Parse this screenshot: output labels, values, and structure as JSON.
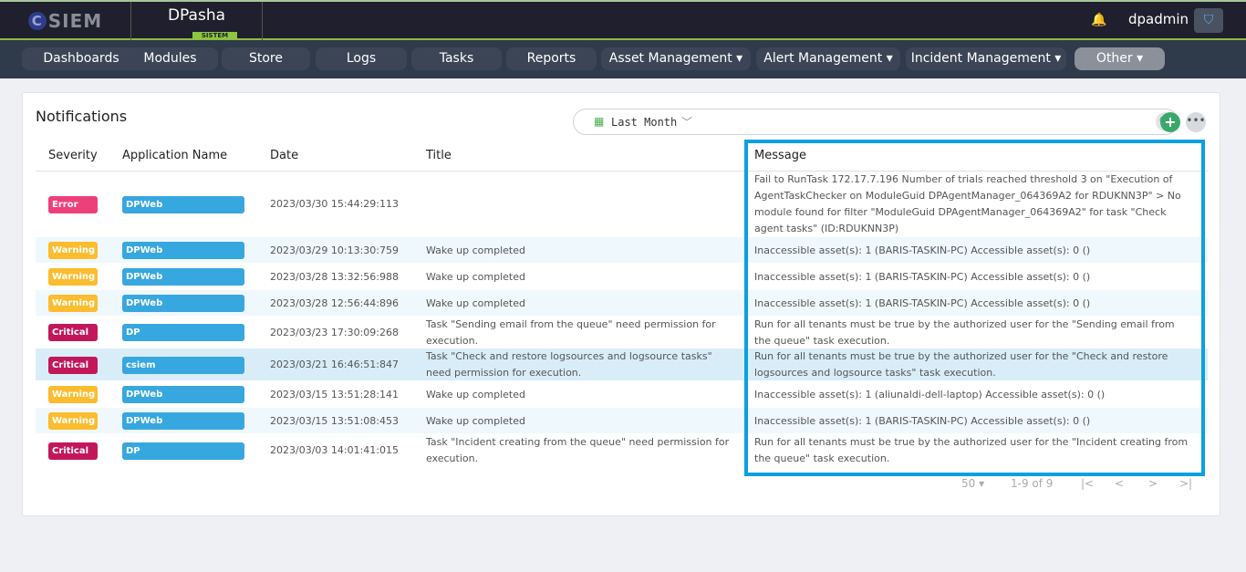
{
  "header": {
    "logo_left": "SIEM",
    "logo_right": "DPasha",
    "logo_right_sub": "SISTEM",
    "username": "dpadmin",
    "bell_icon": "bell-icon",
    "shield_icon": "shield-icon"
  },
  "nav": [
    "Dashboards",
    "Modules",
    "Store",
    "Logs",
    "Tasks",
    "Reports",
    "Asset Management ▾",
    "Alert Management ▾",
    "Incident Management ▾",
    "Other ▾"
  ],
  "notifications": {
    "title": "Notifications",
    "filter": "Last Month",
    "columns": [
      "Severity",
      "Application Name",
      "Date",
      "Title",
      "Message"
    ],
    "rows": [
      {
        "severity": "Error",
        "app": "DPWeb",
        "date": "2023/03/30 15:44:29:113",
        "title": "",
        "message": "Fail to RunTask 172.17.7.196 Number of trials reached threshold 3 on \"Execution of AgentTaskChecker on ModuleGuid DPAgentManager_064369A2 for RDUKNN3P\" > No module found for filter \"ModuleGuid DPAgentManager_064369A2\" for task \"Check agent tasks\" (ID:RDUKNN3P)"
      },
      {
        "severity": "Warning",
        "app": "DPWeb",
        "date": "2023/03/29 10:13:30:759",
        "title": "Wake up completed",
        "message": "Inaccessible asset(s): 1 (BARIS-TASKIN-PC) Accessible asset(s): 0 ()"
      },
      {
        "severity": "Warning",
        "app": "DPWeb",
        "date": "2023/03/28 13:32:56:988",
        "title": "Wake up completed",
        "message": "Inaccessible asset(s): 1 (BARIS-TASKIN-PC) Accessible asset(s): 0 ()"
      },
      {
        "severity": "Warning",
        "app": "DPWeb",
        "date": "2023/03/28 12:56:44:896",
        "title": "Wake up completed",
        "message": "Inaccessible asset(s): 1 (BARIS-TASKIN-PC) Accessible asset(s): 0 ()"
      },
      {
        "severity": "Critical",
        "app": "DP",
        "date": "2023/03/23 17:30:09:268",
        "title": "Task \"Sending email from the queue\" need permission for execution.",
        "message": "Run for all tenants must be true by the authorized user for the \"Sending email from the queue\" task execution."
      },
      {
        "severity": "Critical",
        "app": "csiem",
        "date": "2023/03/21 16:46:51:847",
        "title": "Task \"Check and restore logsources and logsource tasks\" need permission for execution.",
        "message": "Run for all tenants must be true by the authorized user for the \"Check and restore logsources and logsource tasks\" task execution."
      },
      {
        "severity": "Warning",
        "app": "DPWeb",
        "date": "2023/03/15 13:51:28:141",
        "title": "Wake up completed",
        "message": "Inaccessible asset(s): 1 (aliunaldi-dell-laptop) Accessible asset(s): 0 ()"
      },
      {
        "severity": "Warning",
        "app": "DPWeb",
        "date": "2023/03/15 13:51:08:453",
        "title": "Wake up completed",
        "message": "Inaccessible asset(s): 1 (BARIS-TASKIN-PC) Accessible asset(s): 0 ()"
      },
      {
        "severity": "Critical",
        "app": "DP",
        "date": "2023/03/03 14:01:41:015",
        "title": "Task \"Incident creating from the queue\" need permission for execution.",
        "message": "Run for all tenants must be true by the authorized user for the \"Incident creating from the queue\" task execution."
      }
    ],
    "page_size": "50",
    "range": "1-9 of 9"
  },
  "colors": {
    "Error": "#ec407a",
    "Warning": "#fbbc2e",
    "Critical": "#c2185b",
    "highlight": "#0aa0e2"
  }
}
